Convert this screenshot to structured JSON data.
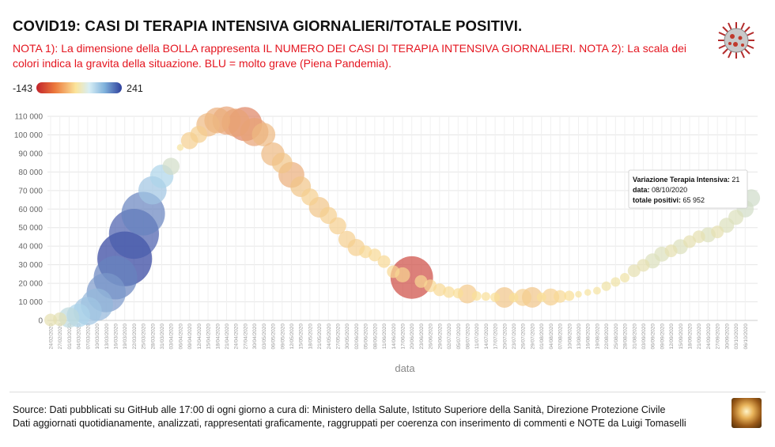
{
  "header": {
    "title": "COVID19: CASI DI TERAPIA INTENSIVA GIORNALIERI/TOTALE POSITIVI.",
    "note": "NOTA 1): La dimensione della BOLLA rappresenta IL NUMERO DEI CASI DI TERAPIA INTENSIVA GIORNALIERI. NOTA 2): La scala dei colori indica la gravita della situazione. BLU = molto grave (Piena Pandemia)."
  },
  "color_scale": {
    "min_label": "-143",
    "max_label": "241",
    "low_color": "#c2232b",
    "mid_color": "#fbe49a",
    "high_color": "#2e3f9c"
  },
  "tooltip": {
    "line1_label": "Variazione Terapia Intensiva:",
    "line1_value": "21",
    "line2_label": "data:",
    "line2_value": "08/10/2020",
    "line3_label": "totale positivi:",
    "line3_value": "65 952"
  },
  "footer": {
    "line1": "Source: Dati pubblicati su GitHub alle 17:00 di ogni giorno a cura di: Ministero della Salute, Istituto Superiore della Sanità, Direzione Protezione Civile",
    "line2": "Dati aggiornati quotidianamente, analizzati, rappresentati graficamente, raggruppati per coerenza con inserimento di commenti e NOTE da Luigi Tomaselli"
  },
  "chart_data": {
    "type": "scatter",
    "xlabel": "data",
    "ylabel": "",
    "ylim": [
      0,
      110000
    ],
    "yticks": [
      "0",
      "10 000",
      "20 000",
      "30 000",
      "40 000",
      "50 000",
      "60 000",
      "70 000",
      "80 000",
      "90 000",
      "100 000",
      "110 000"
    ],
    "grid": true,
    "categories": [
      "24/02/2020",
      "27/02/2020",
      "01/03/2020",
      "04/03/2020",
      "07/03/2020",
      "10/03/2020",
      "13/03/2020",
      "16/03/2020",
      "19/03/2020",
      "22/03/2020",
      "25/03/2020",
      "28/03/2020",
      "31/03/2020",
      "03/04/2020",
      "06/04/2020",
      "09/04/2020",
      "12/04/2020",
      "15/04/2020",
      "18/04/2020",
      "21/04/2020",
      "24/04/2020",
      "27/04/2020",
      "30/04/2020",
      "03/05/2020",
      "06/05/2020",
      "09/05/2020",
      "12/05/2020",
      "15/05/2020",
      "18/05/2020",
      "21/05/2020",
      "24/05/2020",
      "27/05/2020",
      "30/05/2020",
      "02/06/2020",
      "05/06/2020",
      "08/06/2020",
      "11/06/2020",
      "14/06/2020",
      "17/06/2020",
      "20/06/2020",
      "23/06/2020",
      "26/06/2020",
      "29/06/2020",
      "02/07/2020",
      "05/07/2020",
      "08/07/2020",
      "11/07/2020",
      "14/07/2020",
      "17/07/2020",
      "20/07/2020",
      "23/07/2020",
      "26/07/2020",
      "29/07/2020",
      "01/08/2020",
      "04/08/2020",
      "07/08/2020",
      "10/08/2020",
      "13/08/2020",
      "16/08/2020",
      "19/08/2020",
      "22/08/2020",
      "25/08/2020",
      "28/08/2020",
      "31/08/2020",
      "03/09/2020",
      "06/09/2020",
      "09/09/2020",
      "12/09/2020",
      "15/09/2020",
      "18/09/2020",
      "21/09/2020",
      "24/09/2020",
      "27/09/2020",
      "30/09/2020",
      "03/10/2020",
      "06/10/2020"
    ],
    "points": [
      {
        "x": "24/02/2020",
        "y": 221,
        "size": 10
      },
      {
        "x": "27/02/2020",
        "y": 650,
        "size": 12
      },
      {
        "x": "01/03/2020",
        "y": 1577,
        "size": 30
      },
      {
        "x": "04/03/2020",
        "y": 2706,
        "size": 40
      },
      {
        "x": "07/03/2020",
        "y": 5061,
        "size": 60
      },
      {
        "x": "10/03/2020",
        "y": 8514,
        "size": 80
      },
      {
        "x": "13/03/2020",
        "y": 14955,
        "size": 120
      },
      {
        "x": "16/03/2020",
        "y": 23073,
        "size": 150
      },
      {
        "x": "19/03/2020",
        "y": 33190,
        "size": 241
      },
      {
        "x": "22/03/2020",
        "y": 46638,
        "size": 200
      },
      {
        "x": "25/03/2020",
        "y": 57521,
        "size": 150
      },
      {
        "x": "28/03/2020",
        "y": 70065,
        "size": 60
      },
      {
        "x": "31/03/2020",
        "y": 77635,
        "size": 40
      },
      {
        "x": "03/04/2020",
        "y": 83049,
        "size": 20
      },
      {
        "x": "06/04/2020",
        "y": 93187,
        "size": 2
      },
      {
        "x": "09/04/2020",
        "y": 96877,
        "size": -20
      },
      {
        "x": "12/04/2020",
        "y": 100269,
        "size": -20
      },
      {
        "x": "15/04/2020",
        "y": 105418,
        "size": -40
      },
      {
        "x": "18/04/2020",
        "y": 107771,
        "size": -50
      },
      {
        "x": "21/04/2020",
        "y": 107709,
        "size": -60
      },
      {
        "x": "24/04/2020",
        "y": 106527,
        "size": -60
      },
      {
        "x": "27/04/2020",
        "y": 105813,
        "size": -90
      },
      {
        "x": "30/04/2020",
        "y": 101551,
        "size": -60
      },
      {
        "x": "03/05/2020",
        "y": 100179,
        "size": -40
      },
      {
        "x": "06/05/2020",
        "y": 89624,
        "size": -40
      },
      {
        "x": "09/05/2020",
        "y": 84842,
        "size": -30
      },
      {
        "x": "12/05/2020",
        "y": 78457,
        "size": -50
      },
      {
        "x": "15/05/2020",
        "y": 72070,
        "size": -30
      },
      {
        "x": "18/05/2020",
        "y": 66553,
        "size": -20
      },
      {
        "x": "21/05/2020",
        "y": 60960,
        "size": -30
      },
      {
        "x": "24/05/2020",
        "y": 56594,
        "size": -20
      },
      {
        "x": "27/05/2020",
        "y": 50966,
        "size": -20
      },
      {
        "x": "30/05/2020",
        "y": 43691,
        "size": -20
      },
      {
        "x": "02/06/2020",
        "y": 39297,
        "size": -20
      },
      {
        "x": "05/06/2020",
        "y": 36976,
        "size": -10
      },
      {
        "x": "08/06/2020",
        "y": 35262,
        "size": -10
      },
      {
        "x": "11/06/2020",
        "y": 31710,
        "size": -10
      },
      {
        "x": "14/06/2020",
        "y": 26274,
        "size": -10
      },
      {
        "x": "17/06/2020",
        "y": 24569,
        "size": -15
      },
      {
        "x": "20/06/2020",
        "y": 23101,
        "size": -143
      },
      {
        "x": "23/06/2020",
        "y": 20972,
        "size": -10
      },
      {
        "x": "26/06/2020",
        "y": 18655,
        "size": -10
      },
      {
        "x": "29/06/2020",
        "y": 16496,
        "size": -10
      },
      {
        "x": "02/07/2020",
        "y": 15255,
        "size": -8
      },
      {
        "x": "05/07/2020",
        "y": 14621,
        "size": -6
      },
      {
        "x": "08/07/2020",
        "y": 14242,
        "size": -25
      },
      {
        "x": "11/07/2020",
        "y": 13179,
        "size": -5
      },
      {
        "x": "14/07/2020",
        "y": 12919,
        "size": -4
      },
      {
        "x": "17/07/2020",
        "y": 12456,
        "size": -5
      },
      {
        "x": "20/07/2020",
        "y": 12368,
        "size": -30
      },
      {
        "x": "23/07/2020",
        "y": 12322,
        "size": -5
      },
      {
        "x": "26/07/2020",
        "y": 12404,
        "size": -20
      },
      {
        "x": "29/07/2020",
        "y": 12404,
        "size": -30
      },
      {
        "x": "01/08/2020",
        "y": 12482,
        "size": -5
      },
      {
        "x": "04/08/2020",
        "y": 12616,
        "size": -20
      },
      {
        "x": "07/08/2020",
        "y": 12924,
        "size": -10
      },
      {
        "x": "10/08/2020",
        "y": 13263,
        "size": -6
      },
      {
        "x": "13/08/2020",
        "y": 14081,
        "size": 2
      },
      {
        "x": "16/08/2020",
        "y": 15089,
        "size": 2
      },
      {
        "x": "19/08/2020",
        "y": 16014,
        "size": 3
      },
      {
        "x": "22/08/2020",
        "y": 18438,
        "size": 5
      },
      {
        "x": "25/08/2020",
        "y": 20753,
        "size": 5
      },
      {
        "x": "28/08/2020",
        "y": 23035,
        "size": 5
      },
      {
        "x": "31/08/2020",
        "y": 26754,
        "size": 10
      },
      {
        "x": "03/09/2020",
        "y": 29704,
        "size": 10
      },
      {
        "x": "06/09/2020",
        "y": 32078,
        "size": 15
      },
      {
        "x": "09/09/2020",
        "y": 35708,
        "size": 15
      },
      {
        "x": "12/09/2020",
        "y": 37503,
        "size": 10
      },
      {
        "x": "15/09/2020",
        "y": 39712,
        "size": 15
      },
      {
        "x": "18/09/2020",
        "y": 42457,
        "size": 10
      },
      {
        "x": "21/09/2020",
        "y": 45079,
        "size": 10
      },
      {
        "x": "24/09/2020",
        "y": 46114,
        "size": 15
      },
      {
        "x": "27/09/2020",
        "y": 47718,
        "size": 10
      },
      {
        "x": "30/09/2020",
        "y": 51263,
        "size": 15
      },
      {
        "x": "03/10/2020",
        "y": 55566,
        "size": 15
      },
      {
        "x": "06/10/2020",
        "y": 60134,
        "size": 20
      },
      {
        "x": "08/10/2020",
        "y": 65952,
        "size": 21
      }
    ]
  }
}
